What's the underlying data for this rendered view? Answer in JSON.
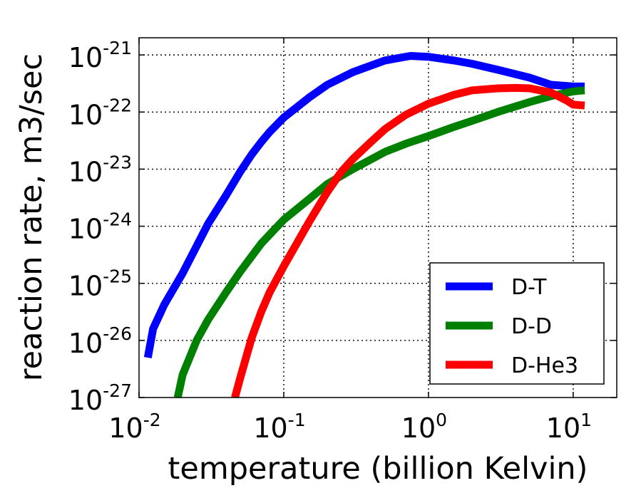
{
  "chart_data": {
    "type": "line",
    "xlabel": "temperature (billion Kelvin)",
    "ylabel": "reaction rate,  m3/sec",
    "xscale": "log",
    "yscale": "log",
    "xlim": [
      0.01,
      20
    ],
    "ylim": [
      1e-27,
      2e-21
    ],
    "grid": true,
    "legend_position": "lower-right",
    "x_ticks": [
      {
        "base": "10",
        "exp": "-2",
        "value": 0.01
      },
      {
        "base": "10",
        "exp": "-1",
        "value": 0.1
      },
      {
        "base": "10",
        "exp": "0",
        "value": 1
      },
      {
        "base": "10",
        "exp": "1",
        "value": 10
      }
    ],
    "y_ticks": [
      {
        "base": "10",
        "exp": "-27",
        "value": 1e-27
      },
      {
        "base": "10",
        "exp": "-26",
        "value": 1e-26
      },
      {
        "base": "10",
        "exp": "-25",
        "value": 1e-25
      },
      {
        "base": "10",
        "exp": "-24",
        "value": 1e-24
      },
      {
        "base": "10",
        "exp": "-23",
        "value": 1e-23
      },
      {
        "base": "10",
        "exp": "-22",
        "value": 1e-22
      },
      {
        "base": "10",
        "exp": "-21",
        "value": 1e-21
      }
    ],
    "series": [
      {
        "name": "D-T",
        "color": "#0000ff",
        "points": [
          [
            0.0115,
            5e-27
          ],
          [
            0.0125,
            1.6e-26
          ],
          [
            0.015,
            4.3e-26
          ],
          [
            0.02,
            1.5e-25
          ],
          [
            0.025,
            4.5e-25
          ],
          [
            0.03,
            1.1e-24
          ],
          [
            0.04,
            3.5e-24
          ],
          [
            0.05,
            9e-24
          ],
          [
            0.06,
            1.8e-23
          ],
          [
            0.07,
            3e-23
          ],
          [
            0.08,
            4.5e-23
          ],
          [
            0.1,
            8e-23
          ],
          [
            0.15,
            1.8e-22
          ],
          [
            0.2,
            3e-22
          ],
          [
            0.3,
            5e-22
          ],
          [
            0.5,
            8e-22
          ],
          [
            0.75,
            9.6e-22
          ],
          [
            1.0,
            9.3e-22
          ],
          [
            1.5,
            8e-22
          ],
          [
            2.0,
            7e-22
          ],
          [
            3.0,
            5.5e-22
          ],
          [
            5.0,
            4e-22
          ],
          [
            7.0,
            3e-22
          ],
          [
            10,
            2.8e-22
          ],
          [
            12,
            2.8e-22
          ]
        ]
      },
      {
        "name": "D-D",
        "color": "#008000",
        "points": [
          [
            0.0185,
            1e-27
          ],
          [
            0.02,
            2.5e-27
          ],
          [
            0.025,
            1e-26
          ],
          [
            0.03,
            2.3e-26
          ],
          [
            0.04,
            7e-26
          ],
          [
            0.05,
            1.6e-25
          ],
          [
            0.07,
            5e-25
          ],
          [
            0.1,
            1.3e-24
          ],
          [
            0.15,
            3e-24
          ],
          [
            0.2,
            5.5e-24
          ],
          [
            0.3,
            1e-23
          ],
          [
            0.5,
            2e-23
          ],
          [
            0.7,
            2.8e-23
          ],
          [
            1.0,
            3.8e-23
          ],
          [
            1.5,
            5.5e-23
          ],
          [
            2.0,
            7e-23
          ],
          [
            3.0,
            1e-22
          ],
          [
            5.0,
            1.5e-22
          ],
          [
            7.0,
            1.9e-22
          ],
          [
            10,
            2.3e-22
          ],
          [
            12,
            2.4e-22
          ]
        ]
      },
      {
        "name": "D-He3",
        "color": "#ff0000",
        "points": [
          [
            0.046,
            1e-27
          ],
          [
            0.05,
            2.2e-27
          ],
          [
            0.06,
            1.1e-26
          ],
          [
            0.07,
            3.2e-26
          ],
          [
            0.08,
            7e-26
          ],
          [
            0.1,
            2e-25
          ],
          [
            0.15,
            1.2e-24
          ],
          [
            0.2,
            4e-24
          ],
          [
            0.25,
            9e-24
          ],
          [
            0.3,
            1.5e-23
          ],
          [
            0.4,
            3e-23
          ],
          [
            0.5,
            5e-23
          ],
          [
            0.7,
            9e-23
          ],
          [
            1.0,
            1.4e-22
          ],
          [
            1.5,
            2e-22
          ],
          [
            2.0,
            2.4e-22
          ],
          [
            3.0,
            2.6e-22
          ],
          [
            4.0,
            2.65e-22
          ],
          [
            5.0,
            2.6e-22
          ],
          [
            7.0,
            2.2e-22
          ],
          [
            9.0,
            1.6e-22
          ],
          [
            10,
            1.35e-22
          ],
          [
            12,
            1.3e-22
          ]
        ]
      }
    ]
  }
}
